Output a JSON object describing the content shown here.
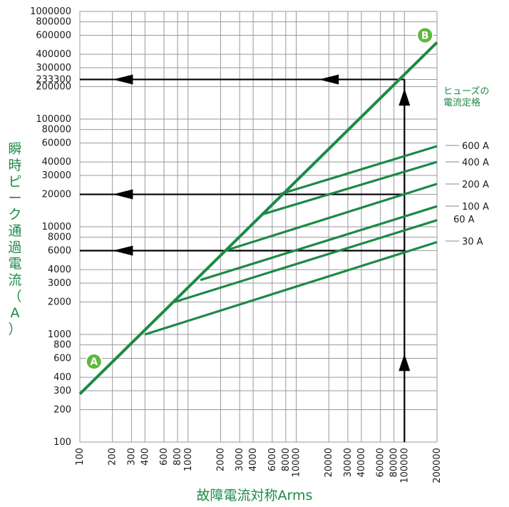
{
  "chart_data": {
    "type": "line",
    "xscale": "log",
    "yscale": "log",
    "xlim": [
      100,
      200000
    ],
    "ylim": [
      100,
      1000000
    ],
    "grid": true,
    "xlabel": "故障電流対称Arms",
    "ylabel": "瞬時ピーク通過電流（A）",
    "xticks": [
      "100",
      "200",
      "300",
      "400",
      "600",
      "800",
      "1000",
      "2000",
      "3000",
      "4000",
      "6000",
      "8000",
      "10000",
      "20000",
      "30000",
      "40000",
      "60000",
      "80000",
      "100000",
      "200000"
    ],
    "yticks": [
      "100",
      "200",
      "300",
      "400",
      "600",
      "800",
      "1000",
      "2000",
      "3000",
      "4000",
      "6000",
      "8000",
      "10000",
      "20000",
      "30000",
      "40000",
      "60000",
      "80000",
      "100000",
      "200000",
      "233300",
      "300000",
      "400000",
      "600000",
      "800000",
      "1000000"
    ],
    "rating_title": [
      "ヒューズの",
      "電流定格"
    ],
    "series": [
      {
        "name": "",
        "x": [
          100,
          200000
        ],
        "y": [
          280,
          515000
        ]
      },
      {
        "name": "600 A",
        "x": [
          7000,
          200000
        ],
        "y": [
          20000,
          56000
        ]
      },
      {
        "name": "400 A",
        "x": [
          4800,
          200000
        ],
        "y": [
          13000,
          40000
        ]
      },
      {
        "name": "200 A",
        "x": [
          2200,
          200000
        ],
        "y": [
          6000,
          25000
        ]
      },
      {
        "name": "100 A",
        "x": [
          1300,
          200000
        ],
        "y": [
          3200,
          15500
        ]
      },
      {
        "name": "60 A",
        "x": [
          750,
          200000
        ],
        "y": [
          2000,
          11500
        ]
      },
      {
        "name": "30 A",
        "x": [
          400,
          200000
        ],
        "y": [
          1000,
          7200
        ]
      }
    ],
    "reference_lines": [
      {
        "x": [
          100000,
          100
        ],
        "y": [
          233300,
          233300
        ]
      },
      {
        "x": [
          100000,
          100
        ],
        "y": [
          20000,
          20000
        ]
      },
      {
        "x": [
          100000,
          100
        ],
        "y": [
          6000,
          6000
        ]
      },
      {
        "x": [
          100000,
          100000
        ],
        "y": [
          100,
          233300
        ]
      }
    ],
    "arrows": [
      {
        "x": 250,
        "y": 233300
      },
      {
        "x": 20000,
        "y": 233300
      },
      {
        "x": 250,
        "y": 20000
      },
      {
        "x": 250,
        "y": 6000
      },
      {
        "x": 100000,
        "y": 550
      },
      {
        "x": 100000,
        "y": 160000
      }
    ],
    "markers": [
      {
        "label": "A",
        "x": 135,
        "y": 560
      },
      {
        "label": "B",
        "x": 155000,
        "y": 600000
      }
    ],
    "colors": {
      "curve": "#1c8a46",
      "grid": "#9a9a9a",
      "reference": "#000000",
      "marker": "#5fb83a"
    }
  }
}
